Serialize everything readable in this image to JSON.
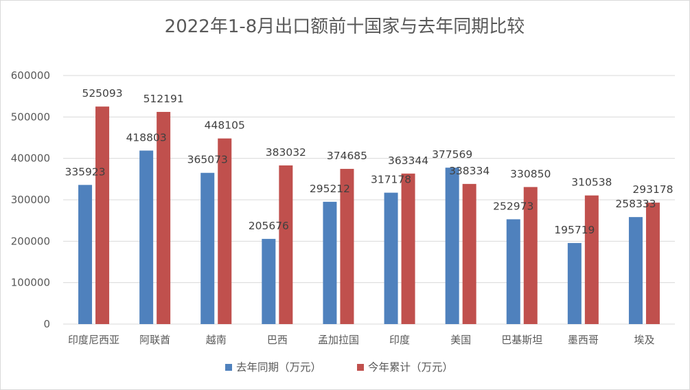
{
  "chart_data": {
    "type": "bar",
    "title": "2022年1-8月出口额前十国家与去年同期比较",
    "categories": [
      "印度尼西亚",
      "阿联酋",
      "越南",
      "巴西",
      "孟加拉国",
      "印度",
      "美国",
      "巴基斯坦",
      "墨西哥",
      "埃及"
    ],
    "series": [
      {
        "name": "去年同期（万元）",
        "color": "#4f81bd",
        "values": [
          335923,
          418803,
          365073,
          205676,
          295212,
          317178,
          377569,
          252973,
          195719,
          258333
        ]
      },
      {
        "name": "今年累计（万元）",
        "color": "#c0504d",
        "values": [
          525093,
          512191,
          448105,
          383032,
          374685,
          363344,
          338334,
          330850,
          310538,
          293178
        ]
      }
    ],
    "ylim": [
      0,
      600000
    ],
    "yticks": [
      "0",
      "100000",
      "200000",
      "300000",
      "400000",
      "500000",
      "600000"
    ],
    "xlabel": "",
    "ylabel": "",
    "grid": true,
    "legend_position": "bottom"
  }
}
